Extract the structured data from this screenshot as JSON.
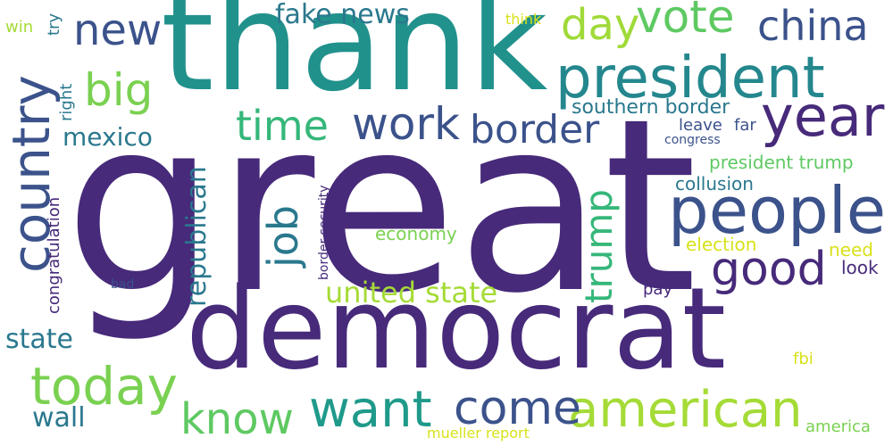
{
  "words": [
    {
      "id": "great",
      "text": "great",
      "color": "#472a7a"
    },
    {
      "id": "thank",
      "text": "thank",
      "color": "#21918c"
    },
    {
      "id": "democrat",
      "text": "democrat",
      "color": "#472a7a"
    },
    {
      "id": "president",
      "text": "president",
      "color": "#24878e"
    },
    {
      "id": "people",
      "text": "people",
      "color": "#3b528b"
    },
    {
      "id": "country",
      "text": "country",
      "color": "#3b528b"
    },
    {
      "id": "american",
      "text": "american",
      "color": "#a5db36"
    },
    {
      "id": "today",
      "text": "today",
      "color": "#7ad151"
    },
    {
      "id": "want",
      "text": "want",
      "color": "#1f9a8a"
    },
    {
      "id": "come",
      "text": "come",
      "color": "#3b528b"
    },
    {
      "id": "know",
      "text": "know",
      "color": "#5ec962"
    },
    {
      "id": "good",
      "text": "good",
      "color": "#472a7a"
    },
    {
      "id": "year",
      "text": "year",
      "color": "#472a7a"
    },
    {
      "id": "vote",
      "text": "vote",
      "color": "#5ec962"
    },
    {
      "id": "china",
      "text": "china",
      "color": "#3b528b"
    },
    {
      "id": "day",
      "text": "day",
      "color": "#a0da39"
    },
    {
      "id": "new",
      "text": "new",
      "color": "#3b528b"
    },
    {
      "id": "big",
      "text": "big",
      "color": "#7ad151"
    },
    {
      "id": "work",
      "text": "work",
      "color": "#3b528b"
    },
    {
      "id": "border",
      "text": "border",
      "color": "#3b528b"
    },
    {
      "id": "time",
      "text": "time",
      "color": "#35b779"
    },
    {
      "id": "job",
      "text": "job",
      "color": "#2a788e"
    },
    {
      "id": "trump",
      "text": "trump",
      "color": "#35b779"
    },
    {
      "id": "fake-news",
      "text": "fake news",
      "color": "#2a788e"
    },
    {
      "id": "united-state",
      "text": "united state",
      "color": "#a5db36"
    },
    {
      "id": "republican",
      "text": "republican",
      "color": "#2a788e"
    },
    {
      "id": "mexico",
      "text": "mexico",
      "color": "#2a788e"
    },
    {
      "id": "state",
      "text": "state",
      "color": "#2a788e"
    },
    {
      "id": "wall",
      "text": "wall",
      "color": "#2a788e"
    },
    {
      "id": "southern-border",
      "text": "southern border",
      "color": "#2a788e"
    },
    {
      "id": "president-trump",
      "text": "president trump",
      "color": "#5ec962"
    },
    {
      "id": "collusion",
      "text": "collusion",
      "color": "#2a788e"
    },
    {
      "id": "election",
      "text": "election",
      "color": "#d8e219"
    },
    {
      "id": "economy",
      "text": "economy",
      "color": "#7ad151"
    },
    {
      "id": "leave",
      "text": "leave",
      "color": "#3b528b"
    },
    {
      "id": "far",
      "text": "far",
      "color": "#3b528b"
    },
    {
      "id": "congress",
      "text": "congress",
      "color": "#3b528b"
    },
    {
      "id": "need",
      "text": "need",
      "color": "#d8e219"
    },
    {
      "id": "look",
      "text": "look",
      "color": "#472a7a"
    },
    {
      "id": "pay",
      "text": "pay",
      "color": "#472a7a"
    },
    {
      "id": "fbi",
      "text": "fbi",
      "color": "#d8e219"
    },
    {
      "id": "america",
      "text": "america",
      "color": "#7ad151"
    },
    {
      "id": "mueller-report",
      "text": "mueller report",
      "color": "#d8e219"
    },
    {
      "id": "think",
      "text": "think",
      "color": "#d8e219"
    },
    {
      "id": "win",
      "text": "win",
      "color": "#a5db36"
    },
    {
      "id": "try",
      "text": "try",
      "color": "#2a788e"
    },
    {
      "id": "right",
      "text": "right",
      "color": "#2a788e"
    },
    {
      "id": "congratulation",
      "text": "congratulation",
      "color": "#472a7a"
    },
    {
      "id": "bad",
      "text": "bad",
      "color": "#3b528b"
    },
    {
      "id": "border-security",
      "text": "border security",
      "color": "#472a7a"
    }
  ]
}
